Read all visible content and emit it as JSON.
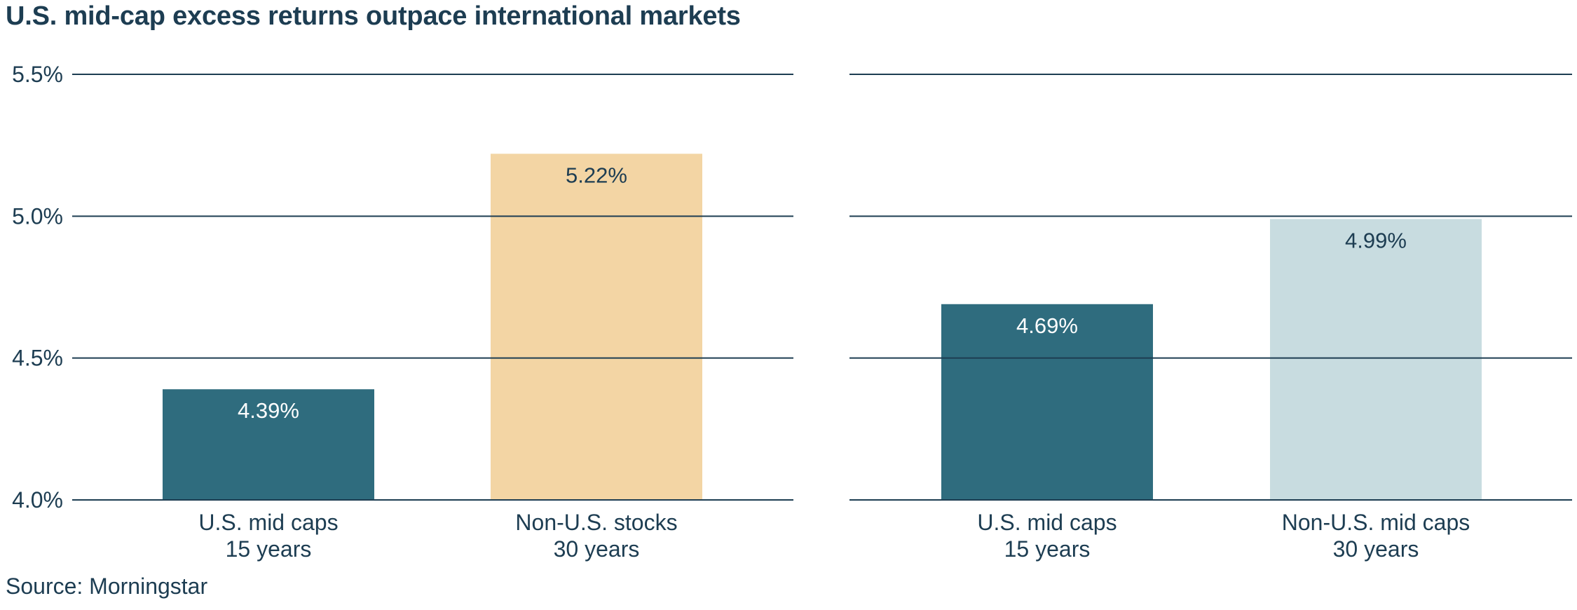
{
  "title": "U.S. mid-cap excess returns outpace international markets",
  "source": "Source: Morningstar",
  "colors": {
    "text": "#1d3d52",
    "gridline": "#1d3d52",
    "us_mid_caps": "#2f6c7e",
    "non_us_stocks": "#f3d5a4",
    "non_us_mid_caps": "#c8dce0",
    "label_on_dark": "#ffffff",
    "label_on_light": "#1d3d52"
  },
  "chart_data": [
    {
      "type": "bar",
      "categories": [
        {
          "line1": "U.S. mid caps",
          "line2": "15 years"
        },
        {
          "line1": "Non-U.S. stocks",
          "line2": "30 years"
        }
      ],
      "values": [
        4.39,
        5.22
      ],
      "data_labels": [
        "4.39%",
        "5.22%"
      ],
      "bar_colors": [
        "#2f6c7e",
        "#f3d5a4"
      ],
      "label_colors": [
        "#ffffff",
        "#1d3d52"
      ],
      "ylim": [
        4.0,
        5.5
      ],
      "yticks": [
        {
          "value": 4.0,
          "label": "4.0%"
        },
        {
          "value": 4.5,
          "label": "4.5%"
        },
        {
          "value": 5.0,
          "label": "5.0%"
        },
        {
          "value": 5.5,
          "label": "5.5%"
        }
      ],
      "grid": true
    },
    {
      "type": "bar",
      "categories": [
        {
          "line1": "U.S. mid caps",
          "line2": "15 years"
        },
        {
          "line1": "Non-U.S. mid caps",
          "line2": "30 years"
        }
      ],
      "values": [
        4.69,
        4.99
      ],
      "data_labels": [
        "4.69%",
        "4.99%"
      ],
      "bar_colors": [
        "#2f6c7e",
        "#c8dce0"
      ],
      "label_colors": [
        "#ffffff",
        "#1d3d52"
      ],
      "ylim": [
        4.0,
        5.5
      ],
      "yticks": [
        {
          "value": 4.0,
          "label": ""
        },
        {
          "value": 4.5,
          "label": ""
        },
        {
          "value": 5.0,
          "label": ""
        },
        {
          "value": 5.5,
          "label": ""
        }
      ],
      "grid": true
    }
  ]
}
